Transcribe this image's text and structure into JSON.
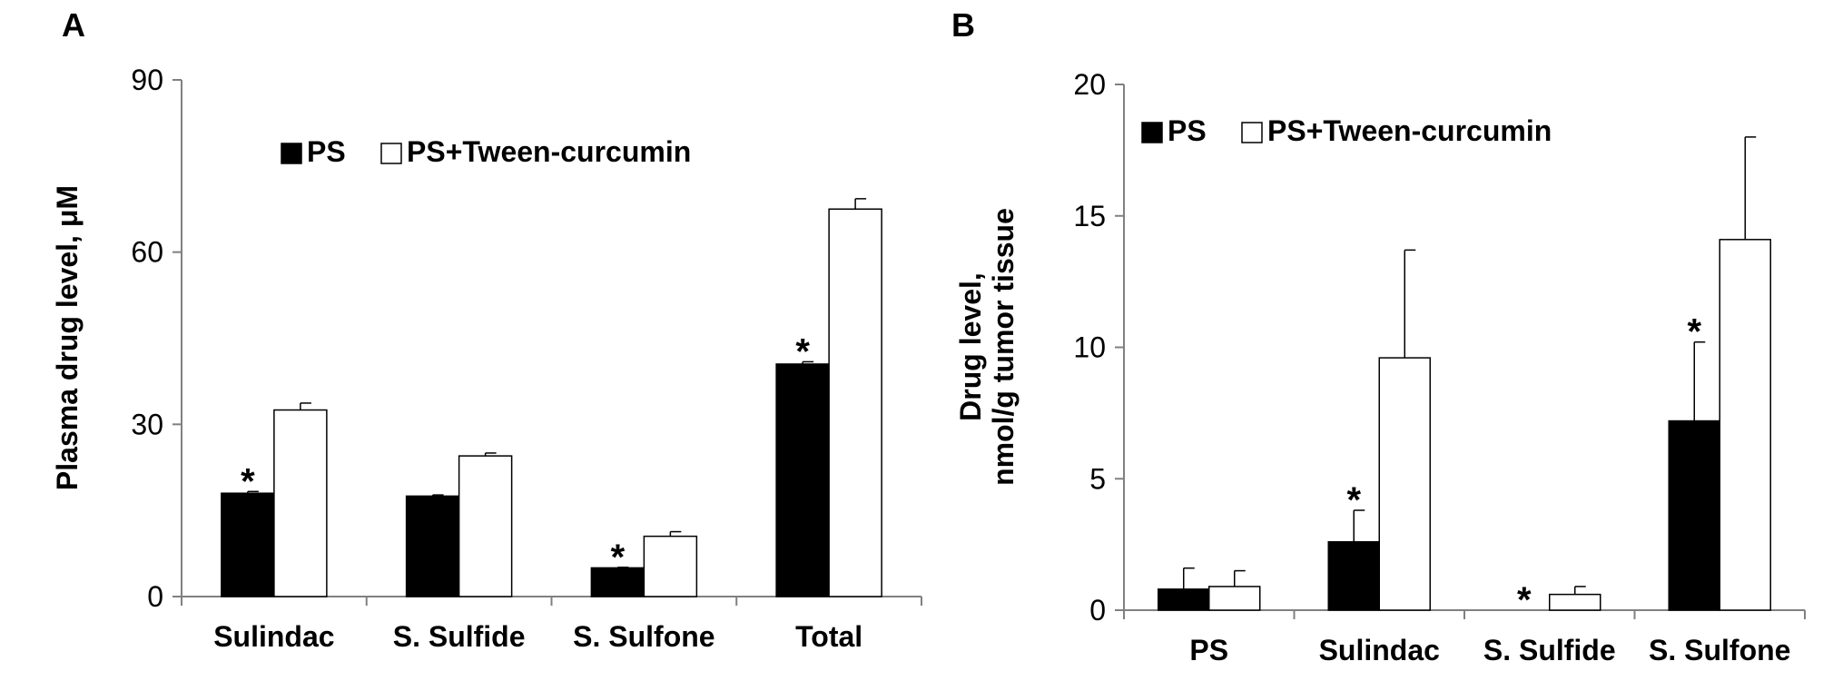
{
  "chart_data": [
    {
      "panel": "A",
      "type": "bar",
      "ylabel": "Plasma drug level, μM",
      "ylim": [
        0,
        90
      ],
      "yticks": [
        0,
        30,
        60,
        90
      ],
      "categories": [
        "Sulindac",
        "S. Sulfide",
        "S. Sulfone",
        "Total"
      ],
      "legend": {
        "placement": "top",
        "labels": [
          "PS",
          "PS+Tween-curcumin"
        ]
      },
      "series": [
        {
          "name": "PS",
          "color": "#000000",
          "values": [
            18,
            17.5,
            5,
            40.5
          ],
          "errors": [
            0.3,
            0.2,
            0.1,
            0.4
          ]
        },
        {
          "name": "PS+Tween-curcumin",
          "color": "#ffffff",
          "values": [
            32.5,
            24.5,
            10.5,
            67.5
          ],
          "errors": [
            1.2,
            0.5,
            0.8,
            1.8
          ]
        }
      ],
      "annotations": [
        {
          "text": "*",
          "category": "Sulindac",
          "series": "PS"
        },
        {
          "text": "*",
          "category": "S. Sulfone",
          "series": "PS"
        },
        {
          "text": "*",
          "category": "Total",
          "series": "PS"
        }
      ],
      "grid": false
    },
    {
      "panel": "B",
      "type": "bar",
      "ylabel_lines": [
        "Drug level,",
        "nmol/g tumor tissue"
      ],
      "ylim": [
        0,
        20
      ],
      "yticks": [
        0,
        5,
        10,
        15,
        20
      ],
      "categories": [
        "PS",
        "Sulindac",
        "S. Sulfide",
        "S. Sulfone"
      ],
      "legend": {
        "placement": "top-left",
        "labels": [
          "PS",
          "PS+Tween-curcumin"
        ]
      },
      "series": [
        {
          "name": "PS",
          "color": "#000000",
          "values": [
            0.8,
            2.6,
            0.0,
            7.2
          ],
          "errors": [
            0.8,
            1.2,
            0.0,
            3.0
          ]
        },
        {
          "name": "PS+Tween-curcumin",
          "color": "#ffffff",
          "values": [
            0.9,
            9.6,
            0.6,
            14.1
          ],
          "errors": [
            0.6,
            4.1,
            0.3,
            3.9
          ]
        }
      ],
      "annotations": [
        {
          "text": "*",
          "category": "Sulindac",
          "series": "PS"
        },
        {
          "text": "*",
          "category": "S. Sulfide",
          "series": "PS"
        },
        {
          "text": "*",
          "category": "S. Sulfone",
          "series": "PS"
        }
      ],
      "grid": false
    }
  ]
}
